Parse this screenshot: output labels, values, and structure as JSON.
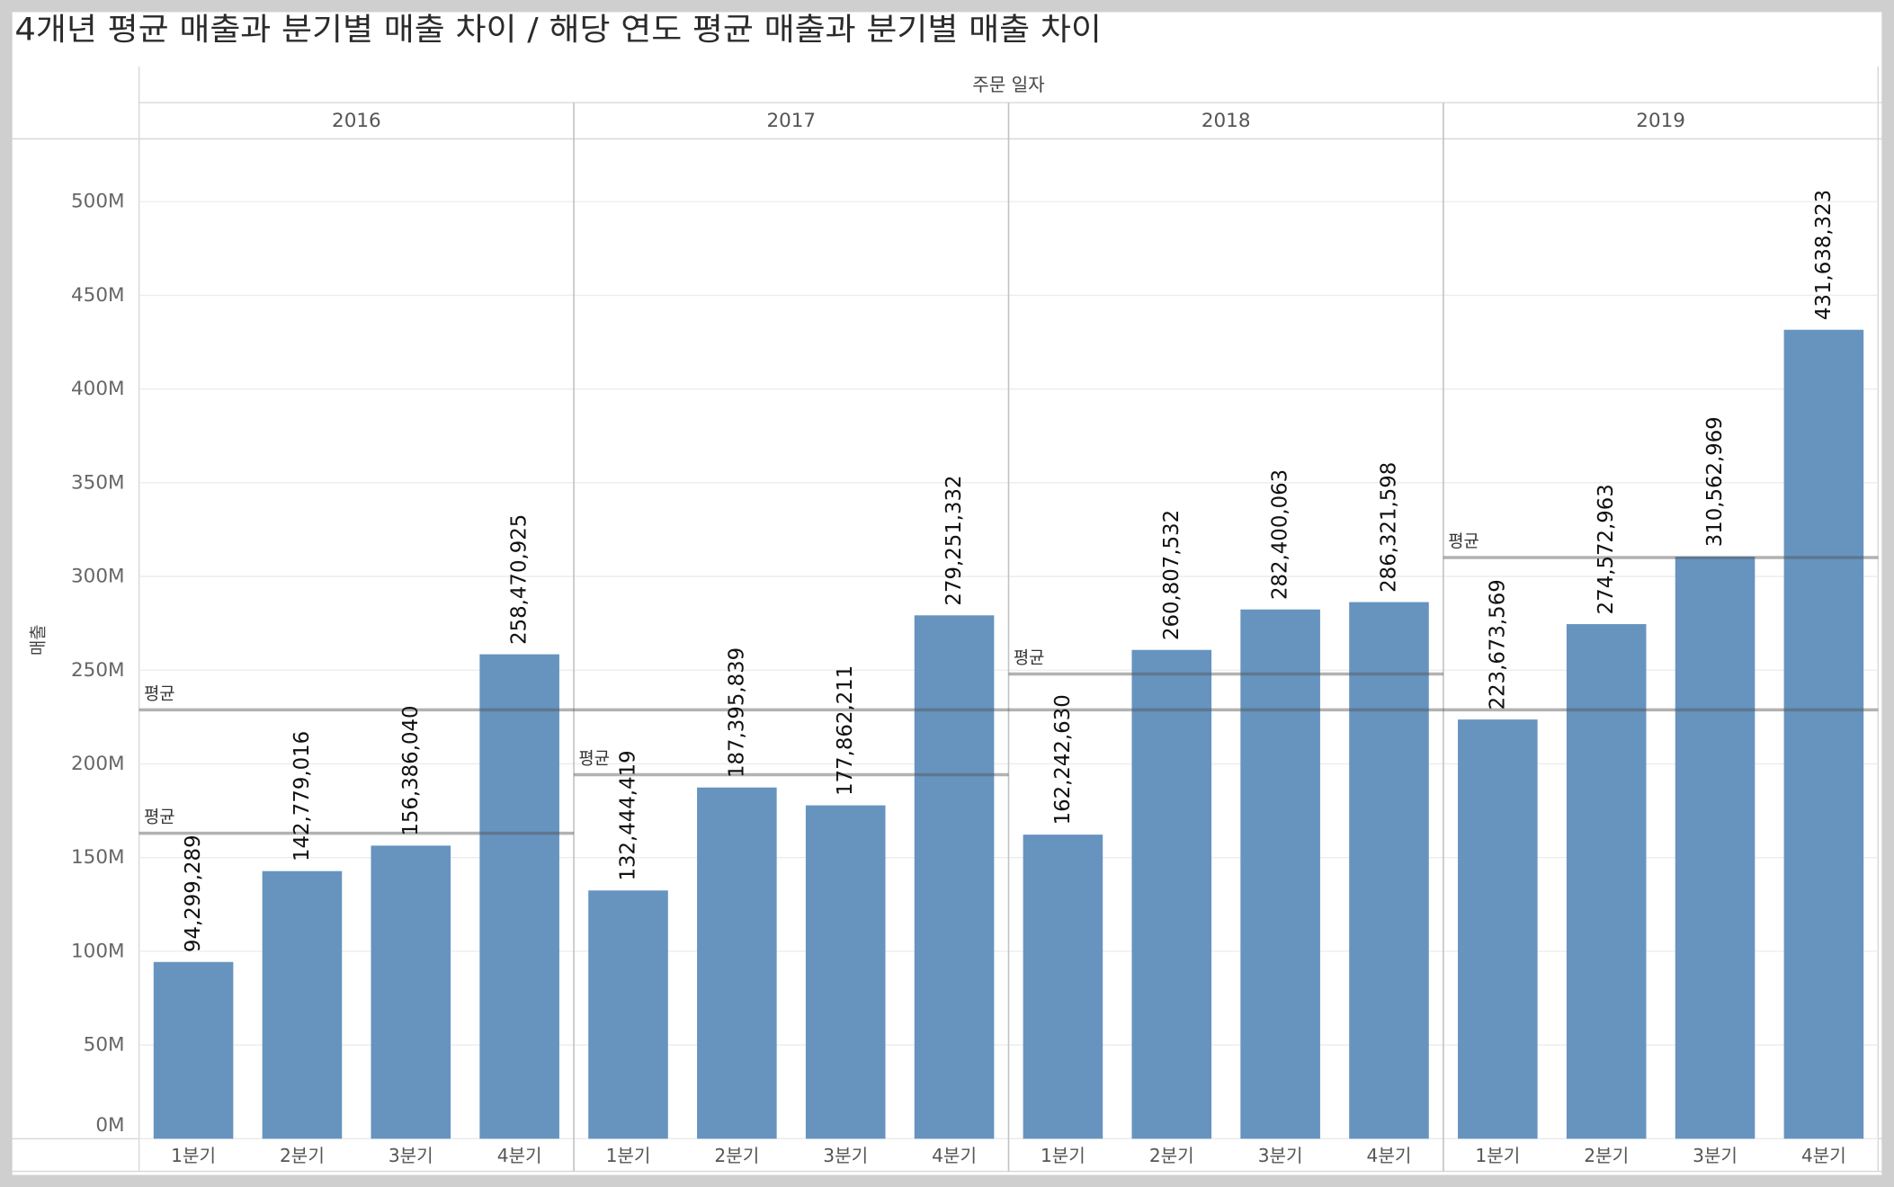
{
  "chart_data": {
    "type": "bar",
    "title": "4개년 평균 매출과 분기별 매출 차이 / 해당 연도 평균 매출과 분기별 매출 차이",
    "column_header": "주문 일자",
    "xlabel": "",
    "ylabel": "매출",
    "ylim": [
      0,
      533500000
    ],
    "yticks": [
      0,
      50000000,
      100000000,
      150000000,
      200000000,
      250000000,
      300000000,
      350000000,
      400000000,
      450000000,
      500000000
    ],
    "ytick_labels": [
      "0M",
      "50M",
      "100M",
      "150M",
      "200M",
      "250M",
      "300M",
      "350M",
      "400M",
      "450M",
      "500M"
    ],
    "grid": true,
    "bar_color": "#6694bf",
    "average_line_color": "#555555",
    "groups": [
      {
        "name": "2016",
        "categories": [
          "1분기",
          "2분기",
          "3분기",
          "4분기"
        ],
        "values": [
          94299289,
          142779016,
          156386040,
          258470925
        ],
        "data_labels": [
          "94,299,289",
          "142,779,016",
          "156,386,040",
          "258,470,925"
        ],
        "average": {
          "label": "평균",
          "value": 162983817.5
        }
      },
      {
        "name": "2017",
        "categories": [
          "1분기",
          "2분기",
          "3분기",
          "4분기"
        ],
        "values": [
          132444419,
          187395839,
          177862211,
          279251332
        ],
        "data_labels": [
          "132,444,419",
          "187,395,839",
          "177,862,211",
          "279,251,332"
        ],
        "average": {
          "label": "평균",
          "value": 194238450.25
        }
      },
      {
        "name": "2018",
        "categories": [
          "1분기",
          "2분기",
          "3분기",
          "4분기"
        ],
        "values": [
          162242630,
          260807532,
          282400063,
          286321598
        ],
        "data_labels": [
          "162,242,630",
          "260,807,532",
          "282,400,063",
          "286,321,598"
        ],
        "average": {
          "label": "평균",
          "value": 247942955.75
        }
      },
      {
        "name": "2019",
        "categories": [
          "1분기",
          "2분기",
          "3분기",
          "4분기"
        ],
        "values": [
          223673569,
          274572963,
          310562969,
          431638323
        ],
        "data_labels": [
          "223,673,569",
          "274,572,963",
          "310,562,969",
          "431,638,323"
        ],
        "average": {
          "label": "평균",
          "value": 310111956
        }
      }
    ],
    "overall_average": {
      "label": "평균",
      "value": 228819294.875
    }
  }
}
